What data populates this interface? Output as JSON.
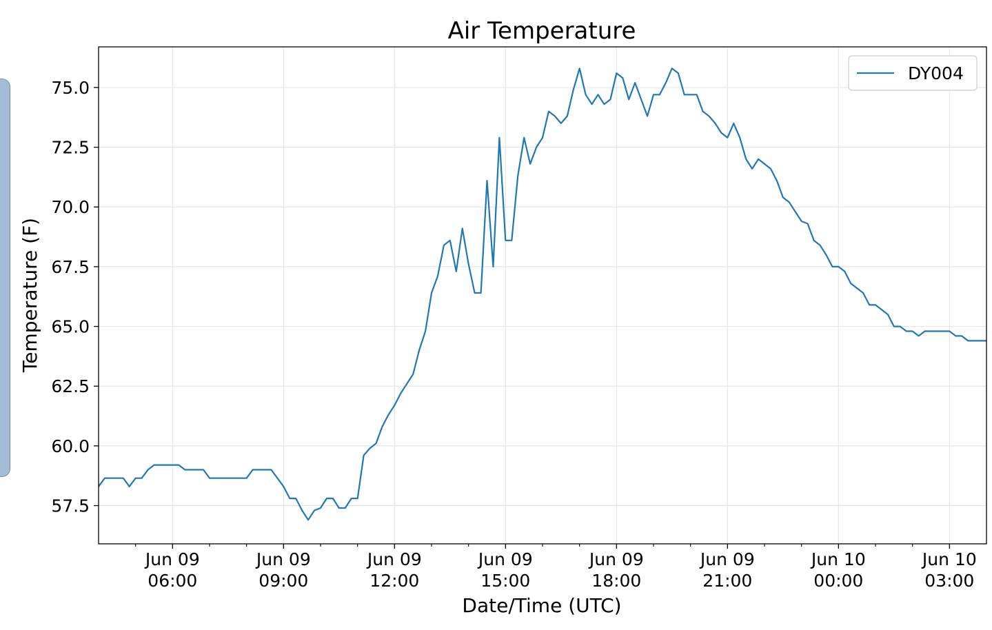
{
  "chart_data": {
    "type": "line",
    "title": "Air Temperature",
    "xlabel": "Date/Time (UTC)",
    "ylabel": "Temperature (F)",
    "x_range": [
      "2019-06-09T04:00",
      "2019-06-10T04:00"
    ],
    "ylim": [
      55.9,
      76.7
    ],
    "y_ticks": [
      57.5,
      60.0,
      62.5,
      65.0,
      67.5,
      70.0,
      72.5,
      75.0
    ],
    "y_tick_labels": [
      "57.5",
      "60.0",
      "62.5",
      "65.0",
      "67.5",
      "70.0",
      "72.5",
      "75.0"
    ],
    "x_ticks": [
      "2019-06-09T06:00",
      "2019-06-09T09:00",
      "2019-06-09T12:00",
      "2019-06-09T15:00",
      "2019-06-09T18:00",
      "2019-06-09T21:00",
      "2019-06-10T00:00",
      "2019-06-10T03:00"
    ],
    "x_tick_labels": [
      {
        "line1": "Jun 09",
        "line2": "06:00"
      },
      {
        "line1": "Jun 09",
        "line2": "09:00"
      },
      {
        "line1": "Jun 09",
        "line2": "12:00"
      },
      {
        "line1": "Jun 09",
        "line2": "15:00"
      },
      {
        "line1": "Jun 09",
        "line2": "18:00"
      },
      {
        "line1": "Jun 09",
        "line2": "21:00"
      },
      {
        "line1": "Jun 10",
        "line2": "00:00"
      },
      {
        "line1": "Jun 10",
        "line2": "03:00"
      }
    ],
    "minor_x_ticks": [
      "2019-06-09T05:00",
      "2019-06-09T07:00",
      "2019-06-09T08:00",
      "2019-06-09T10:00",
      "2019-06-09T11:00",
      "2019-06-09T13:00",
      "2019-06-09T14:00",
      "2019-06-09T16:00",
      "2019-06-09T17:00",
      "2019-06-09T19:00",
      "2019-06-09T20:00",
      "2019-06-09T22:00",
      "2019-06-09T23:00",
      "2019-06-10T01:00",
      "2019-06-10T02:00"
    ],
    "grid": true,
    "legend_position": "top-right",
    "series": [
      {
        "name": "DY004",
        "color": "#1f77b4",
        "points": [
          [
            "2019-06-09T04:00",
            58.3
          ],
          [
            "2019-06-09T04:10",
            58.65
          ],
          [
            "2019-06-09T04:20",
            58.65
          ],
          [
            "2019-06-09T04:30",
            58.65
          ],
          [
            "2019-06-09T04:40",
            58.65
          ],
          [
            "2019-06-09T04:50",
            58.3
          ],
          [
            "2019-06-09T05:00",
            58.65
          ],
          [
            "2019-06-09T05:10",
            58.65
          ],
          [
            "2019-06-09T05:20",
            59.0
          ],
          [
            "2019-06-09T05:30",
            59.2
          ],
          [
            "2019-06-09T05:40",
            59.2
          ],
          [
            "2019-06-09T05:50",
            59.2
          ],
          [
            "2019-06-09T06:00",
            59.2
          ],
          [
            "2019-06-09T06:10",
            59.2
          ],
          [
            "2019-06-09T06:20",
            59.0
          ],
          [
            "2019-06-09T06:30",
            59.0
          ],
          [
            "2019-06-09T06:40",
            59.0
          ],
          [
            "2019-06-09T06:50",
            59.0
          ],
          [
            "2019-06-09T07:00",
            58.65
          ],
          [
            "2019-06-09T07:10",
            58.65
          ],
          [
            "2019-06-09T07:20",
            58.65
          ],
          [
            "2019-06-09T07:30",
            58.65
          ],
          [
            "2019-06-09T07:40",
            58.65
          ],
          [
            "2019-06-09T07:50",
            58.65
          ],
          [
            "2019-06-09T08:00",
            58.65
          ],
          [
            "2019-06-09T08:10",
            59.0
          ],
          [
            "2019-06-09T08:20",
            59.0
          ],
          [
            "2019-06-09T08:30",
            59.0
          ],
          [
            "2019-06-09T08:40",
            59.0
          ],
          [
            "2019-06-09T08:50",
            58.65
          ],
          [
            "2019-06-09T09:00",
            58.3
          ],
          [
            "2019-06-09T09:10",
            57.8
          ],
          [
            "2019-06-09T09:20",
            57.8
          ],
          [
            "2019-06-09T09:30",
            57.3
          ],
          [
            "2019-06-09T09:40",
            56.9
          ],
          [
            "2019-06-09T09:50",
            57.3
          ],
          [
            "2019-06-09T10:00",
            57.4
          ],
          [
            "2019-06-09T10:10",
            57.8
          ],
          [
            "2019-06-09T10:20",
            57.8
          ],
          [
            "2019-06-09T10:30",
            57.4
          ],
          [
            "2019-06-09T10:40",
            57.4
          ],
          [
            "2019-06-09T10:50",
            57.8
          ],
          [
            "2019-06-09T11:00",
            57.8
          ],
          [
            "2019-06-09T11:10",
            59.6
          ],
          [
            "2019-06-09T11:20",
            59.9
          ],
          [
            "2019-06-09T11:30",
            60.1
          ],
          [
            "2019-06-09T11:40",
            60.8
          ],
          [
            "2019-06-09T11:50",
            61.3
          ],
          [
            "2019-06-09T12:00",
            61.7
          ],
          [
            "2019-06-09T12:10",
            62.2
          ],
          [
            "2019-06-09T12:20",
            62.6
          ],
          [
            "2019-06-09T12:30",
            63.0
          ],
          [
            "2019-06-09T12:40",
            64.0
          ],
          [
            "2019-06-09T12:50",
            64.8
          ],
          [
            "2019-06-09T13:00",
            66.4
          ],
          [
            "2019-06-09T13:10",
            67.1
          ],
          [
            "2019-06-09T13:20",
            68.4
          ],
          [
            "2019-06-09T13:30",
            68.6
          ],
          [
            "2019-06-09T13:40",
            67.3
          ],
          [
            "2019-06-09T13:50",
            69.1
          ],
          [
            "2019-06-09T14:00",
            67.6
          ],
          [
            "2019-06-09T14:10",
            66.4
          ],
          [
            "2019-06-09T14:20",
            66.4
          ],
          [
            "2019-06-09T14:30",
            71.1
          ],
          [
            "2019-06-09T14:40",
            67.5
          ],
          [
            "2019-06-09T14:50",
            72.9
          ],
          [
            "2019-06-09T15:00",
            68.6
          ],
          [
            "2019-06-09T15:10",
            68.6
          ],
          [
            "2019-06-09T15:20",
            71.3
          ],
          [
            "2019-06-09T15:30",
            72.9
          ],
          [
            "2019-06-09T15:40",
            71.8
          ],
          [
            "2019-06-09T15:50",
            72.5
          ],
          [
            "2019-06-09T16:00",
            72.9
          ],
          [
            "2019-06-09T16:10",
            74.0
          ],
          [
            "2019-06-09T16:20",
            73.8
          ],
          [
            "2019-06-09T16:30",
            73.5
          ],
          [
            "2019-06-09T16:40",
            73.8
          ],
          [
            "2019-06-09T16:50",
            74.9
          ],
          [
            "2019-06-09T17:00",
            75.8
          ],
          [
            "2019-06-09T17:10",
            74.7
          ],
          [
            "2019-06-09T17:20",
            74.3
          ],
          [
            "2019-06-09T17:30",
            74.7
          ],
          [
            "2019-06-09T17:40",
            74.3
          ],
          [
            "2019-06-09T17:50",
            74.5
          ],
          [
            "2019-06-09T18:00",
            75.6
          ],
          [
            "2019-06-09T18:10",
            75.4
          ],
          [
            "2019-06-09T18:20",
            74.5
          ],
          [
            "2019-06-09T18:30",
            75.2
          ],
          [
            "2019-06-09T18:40",
            74.5
          ],
          [
            "2019-06-09T18:50",
            73.8
          ],
          [
            "2019-06-09T19:00",
            74.7
          ],
          [
            "2019-06-09T19:10",
            74.7
          ],
          [
            "2019-06-09T19:20",
            75.2
          ],
          [
            "2019-06-09T19:30",
            75.8
          ],
          [
            "2019-06-09T19:40",
            75.6
          ],
          [
            "2019-06-09T19:50",
            74.7
          ],
          [
            "2019-06-09T20:00",
            74.7
          ],
          [
            "2019-06-09T20:10",
            74.7
          ],
          [
            "2019-06-09T20:20",
            74.0
          ],
          [
            "2019-06-09T20:30",
            73.8
          ],
          [
            "2019-06-09T20:40",
            73.5
          ],
          [
            "2019-06-09T20:50",
            73.1
          ],
          [
            "2019-06-09T21:00",
            72.9
          ],
          [
            "2019-06-09T21:10",
            73.5
          ],
          [
            "2019-06-09T21:20",
            72.9
          ],
          [
            "2019-06-09T21:30",
            72.0
          ],
          [
            "2019-06-09T21:40",
            71.6
          ],
          [
            "2019-06-09T21:50",
            72.0
          ],
          [
            "2019-06-09T22:00",
            71.8
          ],
          [
            "2019-06-09T22:10",
            71.6
          ],
          [
            "2019-06-09T22:20",
            71.1
          ],
          [
            "2019-06-09T22:30",
            70.4
          ],
          [
            "2019-06-09T22:40",
            70.2
          ],
          [
            "2019-06-09T22:50",
            69.8
          ],
          [
            "2019-06-09T23:00",
            69.4
          ],
          [
            "2019-06-09T23:10",
            69.3
          ],
          [
            "2019-06-09T23:20",
            68.6
          ],
          [
            "2019-06-09T23:30",
            68.4
          ],
          [
            "2019-06-09T23:40",
            68.0
          ],
          [
            "2019-06-09T23:50",
            67.5
          ],
          [
            "2019-06-10T00:00",
            67.5
          ],
          [
            "2019-06-10T00:10",
            67.3
          ],
          [
            "2019-06-10T00:20",
            66.8
          ],
          [
            "2019-06-10T00:30",
            66.6
          ],
          [
            "2019-06-10T00:40",
            66.4
          ],
          [
            "2019-06-10T00:50",
            65.9
          ],
          [
            "2019-06-10T01:00",
            65.9
          ],
          [
            "2019-06-10T01:10",
            65.7
          ],
          [
            "2019-06-10T01:20",
            65.5
          ],
          [
            "2019-06-10T01:30",
            65.0
          ],
          [
            "2019-06-10T01:40",
            65.0
          ],
          [
            "2019-06-10T01:50",
            64.8
          ],
          [
            "2019-06-10T02:00",
            64.8
          ],
          [
            "2019-06-10T02:10",
            64.6
          ],
          [
            "2019-06-10T02:20",
            64.8
          ],
          [
            "2019-06-10T02:30",
            64.8
          ],
          [
            "2019-06-10T02:40",
            64.8
          ],
          [
            "2019-06-10T02:50",
            64.8
          ],
          [
            "2019-06-10T03:00",
            64.8
          ],
          [
            "2019-06-10T03:10",
            64.6
          ],
          [
            "2019-06-10T03:20",
            64.6
          ],
          [
            "2019-06-10T03:30",
            64.4
          ],
          [
            "2019-06-10T03:40",
            64.4
          ],
          [
            "2019-06-10T04:00",
            64.4
          ]
        ]
      }
    ]
  }
}
